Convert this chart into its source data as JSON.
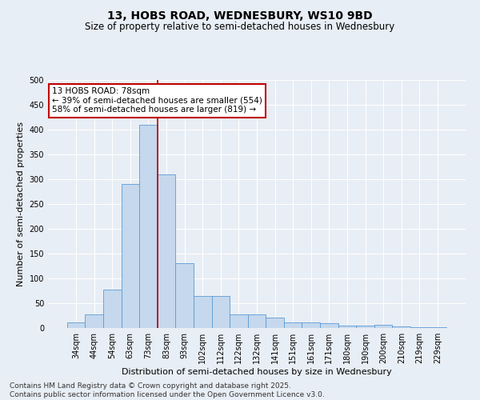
{
  "title_line1": "13, HOBS ROAD, WEDNESBURY, WS10 9BD",
  "title_line2": "Size of property relative to semi-detached houses in Wednesbury",
  "xlabel": "Distribution of semi-detached houses by size in Wednesbury",
  "ylabel": "Number of semi-detached properties",
  "footnote": "Contains HM Land Registry data © Crown copyright and database right 2025.\nContains public sector information licensed under the Open Government Licence v3.0.",
  "categories": [
    "34sqm",
    "44sqm",
    "54sqm",
    "63sqm",
    "73sqm",
    "83sqm",
    "93sqm",
    "102sqm",
    "112sqm",
    "122sqm",
    "132sqm",
    "141sqm",
    "151sqm",
    "161sqm",
    "171sqm",
    "180sqm",
    "190sqm",
    "200sqm",
    "210sqm",
    "219sqm",
    "229sqm"
  ],
  "values": [
    12,
    27,
    78,
    290,
    410,
    310,
    130,
    65,
    65,
    28,
    28,
    21,
    12,
    12,
    10,
    5,
    5,
    7,
    4,
    1,
    1
  ],
  "bar_color": "#c5d8ed",
  "bar_edge_color": "#5b9bd5",
  "highlight_index": 4,
  "highlight_color": "#c00000",
  "annotation_title": "13 HOBS ROAD: 78sqm",
  "annotation_line1": "← 39% of semi-detached houses are smaller (554)",
  "annotation_line2": "58% of semi-detached houses are larger (819) →",
  "annotation_box_color": "#ffffff",
  "annotation_box_edge": "#c00000",
  "ylim": [
    0,
    500
  ],
  "yticks": [
    0,
    50,
    100,
    150,
    200,
    250,
    300,
    350,
    400,
    450,
    500
  ],
  "background_color": "#e8eef5",
  "grid_color": "#ffffff",
  "title_fontsize": 10,
  "subtitle_fontsize": 8.5,
  "axis_label_fontsize": 8,
  "tick_fontsize": 7,
  "annotation_fontsize": 7.5,
  "footnote_fontsize": 6.5
}
